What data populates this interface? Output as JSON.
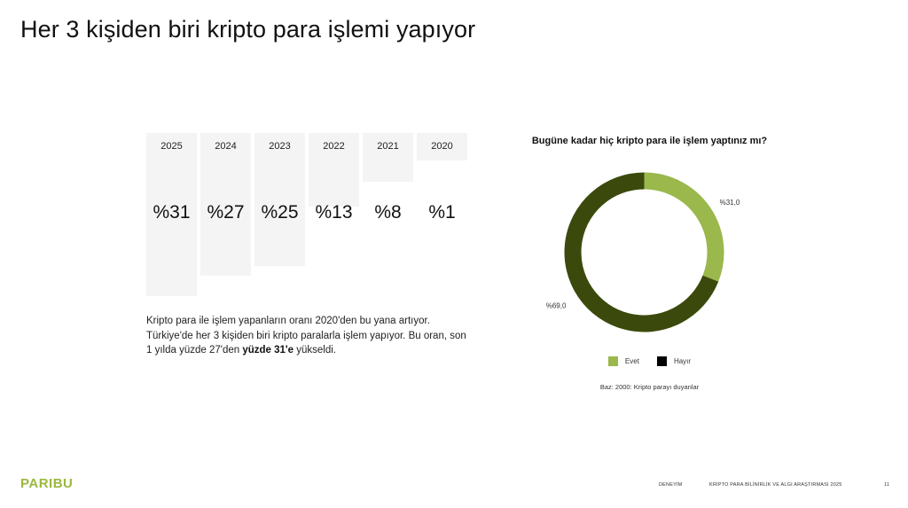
{
  "slide": {
    "title": "Her 3 kişiden biri kripto para işlemi yapıyor",
    "description_before": "Kripto para ile işlem yapanların oranı 2020'den bu yana artıyor. Türkiye'de her 3 kişiden biri kripto paralarla işlem yapıyor. Bu oran, son 1 yılda yüzde 27'den ",
    "description_bold": "yüzde 31'e",
    "description_after": " yükseldi.",
    "base_note": "Baz: 2000: Kripto parayı duyanlar",
    "logo_text": "PARIBU",
    "footer": {
      "label": "DENEYİM",
      "study": "KRİPTO PARA BİLİNİRLİK VE ALGI ARAŞTIRMASI 2025",
      "page_number": "11"
    }
  },
  "chart_data": [
    {
      "type": "bar",
      "categories": [
        "2025",
        "2024",
        "2023",
        "2022",
        "2021",
        "2020"
      ],
      "values": [
        31,
        27,
        25,
        13,
        8,
        1
      ],
      "value_labels": [
        "%31",
        "%27",
        "%25",
        "%13",
        "%8",
        "%1"
      ],
      "bar_color": "#f4f4f5"
    },
    {
      "type": "pie",
      "title": "Bugüne kadar hiç kripto para ile işlem yaptınız mı?",
      "labels": [
        "Evet",
        "Hayır"
      ],
      "values": [
        31.0,
        69.0
      ],
      "value_labels": [
        "%31,0",
        "%69,0"
      ],
      "colors": [
        "#9ab84c",
        "#3b4a0c"
      ],
      "legend_colors": [
        "#9ab84c",
        "#000000"
      ],
      "donut": true,
      "legend": "bottom"
    }
  ]
}
